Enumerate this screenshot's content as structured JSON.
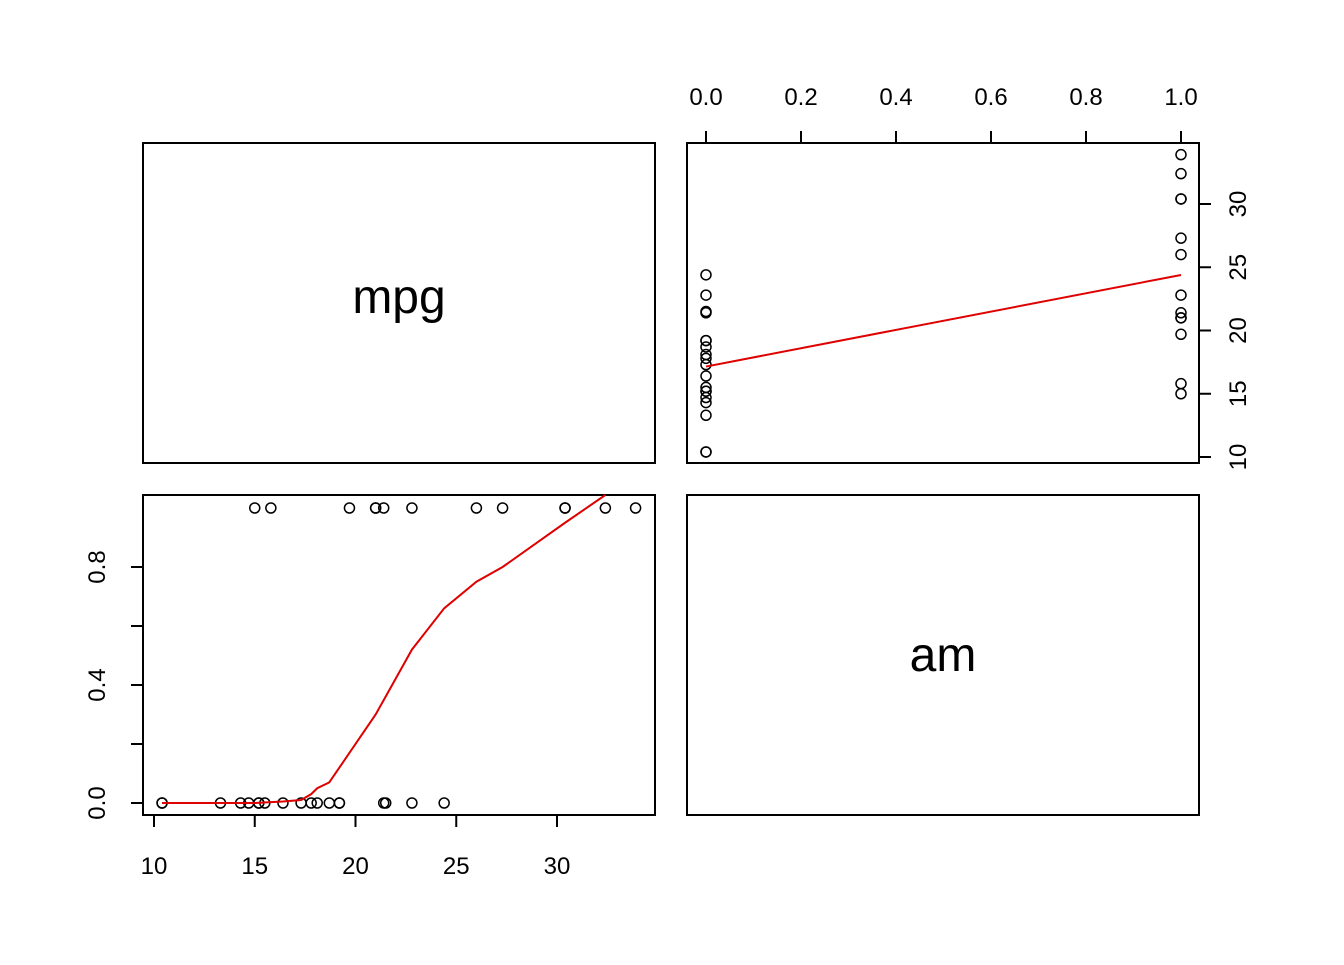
{
  "chart_data": {
    "type": "scatter",
    "variables": [
      "mpg",
      "am"
    ],
    "diagonal_labels": {
      "mpg": "mpg",
      "am": "am"
    },
    "axes": {
      "am_ticks": [
        "0.0",
        "0.2",
        "0.4",
        "0.6",
        "0.8",
        "1.0"
      ],
      "mpg_ticks": [
        "10",
        "15",
        "20",
        "25",
        "30"
      ],
      "am_ticks_side": [
        "0.0",
        "0.4",
        "0.8"
      ],
      "mpg_ticks_side": [
        "10",
        "15",
        "20",
        "25",
        "30"
      ],
      "mpg_range": [
        10.4,
        33.9
      ],
      "am_range": [
        0,
        1
      ]
    },
    "points": [
      {
        "mpg": 21.0,
        "am": 1
      },
      {
        "mpg": 21.0,
        "am": 1
      },
      {
        "mpg": 22.8,
        "am": 1
      },
      {
        "mpg": 21.4,
        "am": 0
      },
      {
        "mpg": 18.7,
        "am": 0
      },
      {
        "mpg": 18.1,
        "am": 0
      },
      {
        "mpg": 14.3,
        "am": 0
      },
      {
        "mpg": 24.4,
        "am": 0
      },
      {
        "mpg": 22.8,
        "am": 0
      },
      {
        "mpg": 19.2,
        "am": 0
      },
      {
        "mpg": 17.8,
        "am": 0
      },
      {
        "mpg": 16.4,
        "am": 0
      },
      {
        "mpg": 17.3,
        "am": 0
      },
      {
        "mpg": 15.2,
        "am": 0
      },
      {
        "mpg": 10.4,
        "am": 0
      },
      {
        "mpg": 10.4,
        "am": 0
      },
      {
        "mpg": 14.7,
        "am": 0
      },
      {
        "mpg": 32.4,
        "am": 1
      },
      {
        "mpg": 30.4,
        "am": 1
      },
      {
        "mpg": 33.9,
        "am": 1
      },
      {
        "mpg": 21.5,
        "am": 0
      },
      {
        "mpg": 15.5,
        "am": 0
      },
      {
        "mpg": 15.2,
        "am": 0
      },
      {
        "mpg": 13.3,
        "am": 0
      },
      {
        "mpg": 19.2,
        "am": 0
      },
      {
        "mpg": 27.3,
        "am": 1
      },
      {
        "mpg": 26.0,
        "am": 1
      },
      {
        "mpg": 30.4,
        "am": 1
      },
      {
        "mpg": 15.8,
        "am": 1
      },
      {
        "mpg": 19.7,
        "am": 1
      },
      {
        "mpg": 15.0,
        "am": 1
      },
      {
        "mpg": 21.4,
        "am": 1
      }
    ],
    "smooth_am_vs_mpg": {
      "mpg": [
        10.4,
        13.3,
        15.0,
        16.4,
        17.3,
        17.8,
        18.1,
        18.7,
        19.2,
        19.7,
        21.0,
        22.8,
        24.4,
        26.0,
        27.3,
        30.4,
        32.4
      ],
      "am": [
        0.0,
        0.0,
        0.0,
        0.005,
        0.01,
        0.03,
        0.05,
        0.07,
        0.12,
        0.17,
        0.3,
        0.52,
        0.66,
        0.75,
        0.8,
        0.95,
        1.05
      ]
    },
    "smooth_mpg_vs_am": {
      "am": [
        0,
        1
      ],
      "mpg": [
        17.15,
        24.39
      ]
    },
    "colors": {
      "points": "#000000",
      "smooth": "#DF0000",
      "frame": "#000000"
    }
  }
}
